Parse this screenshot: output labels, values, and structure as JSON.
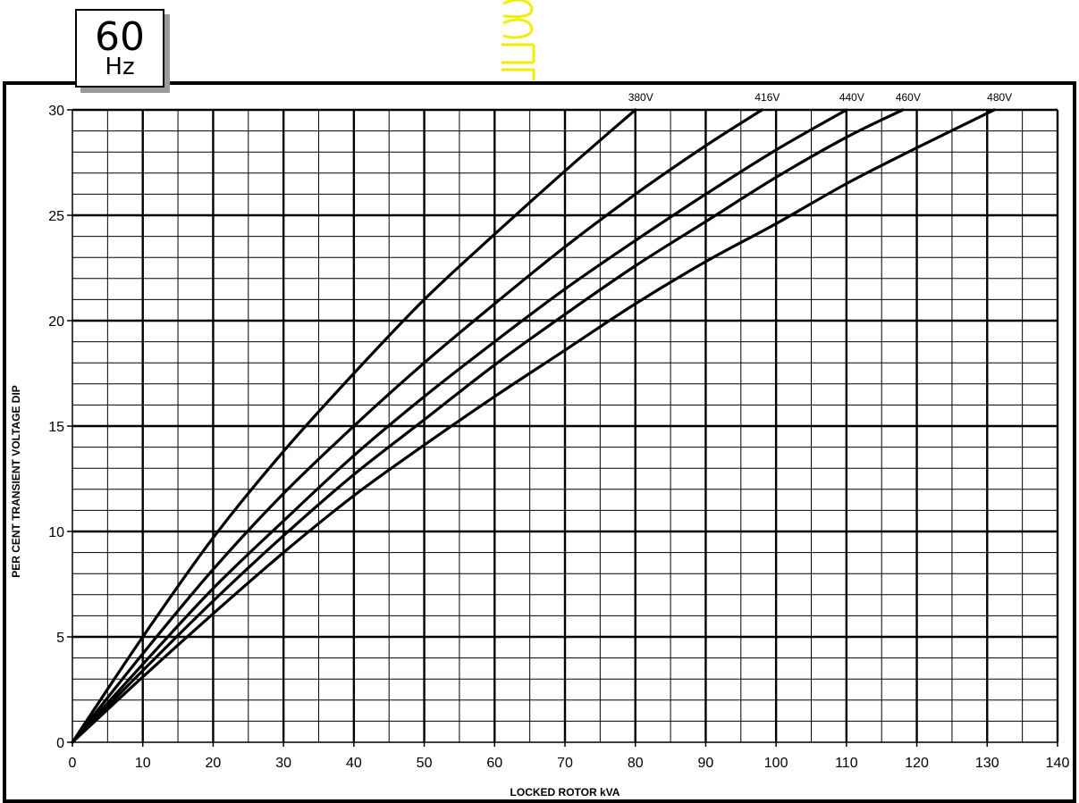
{
  "badge": {
    "number": "60",
    "unit": "Hz"
  },
  "chart_data": {
    "type": "line",
    "title": "",
    "xlabel": "LOCKED ROTOR kVA",
    "ylabel": "PER CENT TRANSIENT VOLTAGE DIP",
    "xlim": [
      0,
      140
    ],
    "ylim": [
      0,
      30
    ],
    "x_ticks": [
      "0",
      "10",
      "20",
      "30",
      "40",
      "50",
      "60",
      "70",
      "80",
      "90",
      "100",
      "110",
      "120",
      "130",
      "140"
    ],
    "y_ticks": [
      "0",
      "5",
      "10",
      "15",
      "20",
      "25",
      "30"
    ],
    "grid": true,
    "series": [
      {
        "name": "380V",
        "x": [
          0,
          10,
          20,
          30,
          40,
          50,
          60,
          70,
          80
        ],
        "y": [
          0,
          5.0,
          9.7,
          13.8,
          17.5,
          21.0,
          24.1,
          27.1,
          30.0
        ]
      },
      {
        "name": "416V",
        "x": [
          0,
          10,
          20,
          30,
          40,
          50,
          60,
          70,
          80,
          90,
          98
        ],
        "y": [
          0,
          4.2,
          8.2,
          11.8,
          15.0,
          18.0,
          20.8,
          23.5,
          26.0,
          28.3,
          30.0
        ]
      },
      {
        "name": "440V",
        "x": [
          0,
          10,
          20,
          30,
          40,
          50,
          60,
          70,
          80,
          90,
          100,
          110
        ],
        "y": [
          0,
          3.7,
          7.3,
          10.5,
          13.6,
          16.4,
          19.0,
          21.5,
          23.8,
          26.0,
          28.1,
          30.0
        ]
      },
      {
        "name": "460V",
        "x": [
          0,
          10,
          20,
          30,
          40,
          50,
          60,
          70,
          80,
          90,
          100,
          110,
          118
        ],
        "y": [
          0,
          3.4,
          6.7,
          9.8,
          12.7,
          15.3,
          17.9,
          20.3,
          22.6,
          24.7,
          26.8,
          28.7,
          30.0
        ]
      },
      {
        "name": "480V",
        "x": [
          0,
          10,
          20,
          30,
          40,
          50,
          60,
          70,
          80,
          90,
          100,
          110,
          120,
          131
        ],
        "y": [
          0,
          3.1,
          6.1,
          9.0,
          11.7,
          14.1,
          16.4,
          18.6,
          20.8,
          22.8,
          24.6,
          26.5,
          28.2,
          30.0
        ]
      }
    ]
  }
}
